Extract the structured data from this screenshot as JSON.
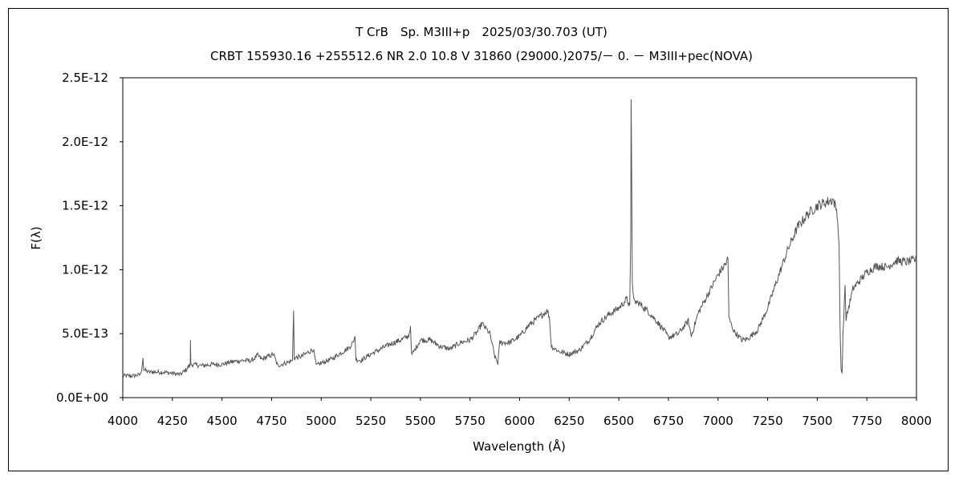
{
  "chart_data": {
    "type": "line",
    "title": "T CrB　Sp. M3III+p　2025/03/30.703 (UT)",
    "subtitle": "CRBT 155930.16 +255512.6 NR 2.0 10.8 V 31860 (29000.)2075/－ 0. － M3III+pec(NOVA)",
    "xlabel": "Wavelength (Å)",
    "ylabel": "F(λ)",
    "xlim": [
      4000,
      8000
    ],
    "ylim": [
      0,
      2.5e-12
    ],
    "x_ticks": [
      "4000",
      "4250",
      "4500",
      "4750",
      "5000",
      "5250",
      "5500",
      "5750",
      "6000",
      "6250",
      "6500",
      "6750",
      "7000",
      "7250",
      "7500",
      "7750",
      "8000"
    ],
    "y_ticks": [
      "0.0E+00",
      "5.0E-13",
      "1.0E-12",
      "1.5E-12",
      "2.0E-12",
      "2.5E-12"
    ],
    "grid": false,
    "series": [
      {
        "color": "#555555",
        "points": [
          [
            4000,
            1.7e-13
          ],
          [
            4050,
            1.7e-13
          ],
          [
            4090,
            1.8e-13
          ],
          [
            4100,
            2.8e-13
          ],
          [
            4102,
            3.1e-13
          ],
          [
            4105,
            2.2e-13
          ],
          [
            4130,
            2e-13
          ],
          [
            4200,
            2e-13
          ],
          [
            4250,
            1.9e-13
          ],
          [
            4290,
            1.8e-13
          ],
          [
            4320,
            2.2e-13
          ],
          [
            4340,
            2.6e-13
          ],
          [
            4341,
            4.5e-13
          ],
          [
            4343,
            2.6e-13
          ],
          [
            4400,
            2.5e-13
          ],
          [
            4450,
            2.6e-13
          ],
          [
            4500,
            2.6e-13
          ],
          [
            4550,
            2.8e-13
          ],
          [
            4600,
            2.9e-13
          ],
          [
            4650,
            2.9e-13
          ],
          [
            4680,
            3.3e-13
          ],
          [
            4700,
            3e-13
          ],
          [
            4730,
            3.2e-13
          ],
          [
            4760,
            3.4e-13
          ],
          [
            4780,
            2.5e-13
          ],
          [
            4800,
            2.6e-13
          ],
          [
            4840,
            2.8e-13
          ],
          [
            4855,
            2.9e-13
          ],
          [
            4861,
            6.8e-13
          ],
          [
            4864,
            3.1e-13
          ],
          [
            4900,
            3.2e-13
          ],
          [
            4940,
            3.6e-13
          ],
          [
            4960,
            3.8e-13
          ],
          [
            4975,
            2.5e-13
          ],
          [
            5000,
            2.7e-13
          ],
          [
            5050,
            3e-13
          ],
          [
            5100,
            3.5e-13
          ],
          [
            5140,
            3.9e-13
          ],
          [
            5160,
            4.3e-13
          ],
          [
            5170,
            4.8e-13
          ],
          [
            5175,
            3e-13
          ],
          [
            5200,
            2.9e-13
          ],
          [
            5250,
            3.4e-13
          ],
          [
            5300,
            3.8e-13
          ],
          [
            5350,
            4.2e-13
          ],
          [
            5400,
            4.5e-13
          ],
          [
            5440,
            4.8e-13
          ],
          [
            5450,
            5.6e-13
          ],
          [
            5455,
            3.3e-13
          ],
          [
            5500,
            4.5e-13
          ],
          [
            5550,
            4.5e-13
          ],
          [
            5600,
            4e-13
          ],
          [
            5650,
            3.8e-13
          ],
          [
            5700,
            4.3e-13
          ],
          [
            5750,
            4.5e-13
          ],
          [
            5790,
            5.2e-13
          ],
          [
            5810,
            5.8e-13
          ],
          [
            5850,
            5e-13
          ],
          [
            5875,
            3.2e-13
          ],
          [
            5890,
            2.7e-13
          ],
          [
            5900,
            4.3e-13
          ],
          [
            5950,
            4.3e-13
          ],
          [
            6000,
            4.8e-13
          ],
          [
            6050,
            5.7e-13
          ],
          [
            6100,
            6.3e-13
          ],
          [
            6140,
            6.8e-13
          ],
          [
            6150,
            6.3e-13
          ],
          [
            6160,
            4e-13
          ],
          [
            6200,
            3.6e-13
          ],
          [
            6250,
            3.4e-13
          ],
          [
            6300,
            3.7e-13
          ],
          [
            6350,
            4.5e-13
          ],
          [
            6400,
            5.8e-13
          ],
          [
            6450,
            6.5e-13
          ],
          [
            6500,
            7e-13
          ],
          [
            6540,
            7.7e-13
          ],
          [
            6555,
            7.2e-13
          ],
          [
            6560,
            1.25e-12
          ],
          [
            6562,
            2.33e-12
          ],
          [
            6564,
            1.95e-12
          ],
          [
            6568,
            9e-13
          ],
          [
            6575,
            7.5e-13
          ],
          [
            6600,
            7.4e-13
          ],
          [
            6650,
            6.7e-13
          ],
          [
            6700,
            5.8e-13
          ],
          [
            6730,
            5.2e-13
          ],
          [
            6750,
            4.7e-13
          ],
          [
            6800,
            5e-13
          ],
          [
            6850,
            6e-13
          ],
          [
            6865,
            4.8e-13
          ],
          [
            6900,
            6.6e-13
          ],
          [
            6950,
            8.1e-13
          ],
          [
            7000,
            9.6e-13
          ],
          [
            7040,
            1.05e-12
          ],
          [
            7050,
            1.09e-12
          ],
          [
            7055,
            6.2e-13
          ],
          [
            7080,
            5.2e-13
          ],
          [
            7120,
            4.5e-13
          ],
          [
            7150,
            4.6e-13
          ],
          [
            7200,
            5.3e-13
          ],
          [
            7250,
            7e-13
          ],
          [
            7300,
            9.3e-13
          ],
          [
            7350,
            1.15e-12
          ],
          [
            7400,
            1.33e-12
          ],
          [
            7450,
            1.43e-12
          ],
          [
            7500,
            1.5e-12
          ],
          [
            7550,
            1.53e-12
          ],
          [
            7580,
            1.55e-12
          ],
          [
            7600,
            1.45e-12
          ],
          [
            7610,
            1.2e-12
          ],
          [
            7615,
            5.5e-13
          ],
          [
            7620,
            2.2e-13
          ],
          [
            7625,
            1.9e-13
          ],
          [
            7630,
            5e-13
          ],
          [
            7640,
            8.8e-13
          ],
          [
            7645,
            6e-13
          ],
          [
            7650,
            6.5e-13
          ],
          [
            7680,
            8.5e-13
          ],
          [
            7700,
            8.9e-13
          ],
          [
            7750,
            9.8e-13
          ],
          [
            7800,
            1.03e-12
          ],
          [
            7850,
            1.02e-12
          ],
          [
            7900,
            1.07e-12
          ],
          [
            7950,
            1.06e-12
          ],
          [
            8000,
            1.08e-12
          ]
        ]
      }
    ]
  }
}
